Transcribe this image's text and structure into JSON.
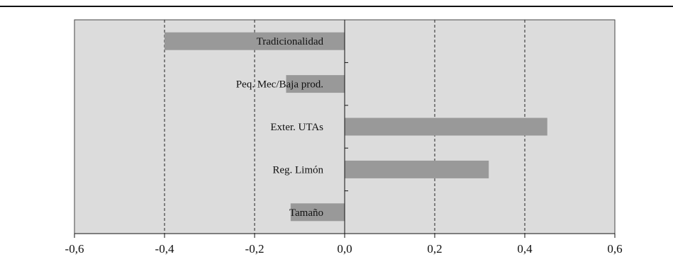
{
  "chart_data": {
    "type": "bar",
    "orientation": "horizontal",
    "title": "",
    "xlabel": "",
    "ylabel": "",
    "categories": [
      "Tradicionalidad",
      "Peq. Mec/Baja prod.",
      "Exter. UTAs",
      "Reg. Limón",
      "Tamaño"
    ],
    "values": [
      -0.4,
      -0.13,
      0.45,
      0.32,
      -0.12
    ],
    "xlim": [
      -0.6,
      0.6
    ],
    "xticks": [
      -0.6,
      -0.4,
      -0.2,
      0.0,
      0.2,
      0.4,
      0.6
    ],
    "xtick_labels": [
      "-0,6",
      "-0,4",
      "-0,2",
      "0,0",
      "0,2",
      "0,4",
      "0,6"
    ],
    "grid": "vertical dashed",
    "legend": "none",
    "colors": {
      "plot_background": "#dcdcdc",
      "bar": "#999999",
      "axis": "#111111",
      "top_rule": "#111111"
    }
  }
}
